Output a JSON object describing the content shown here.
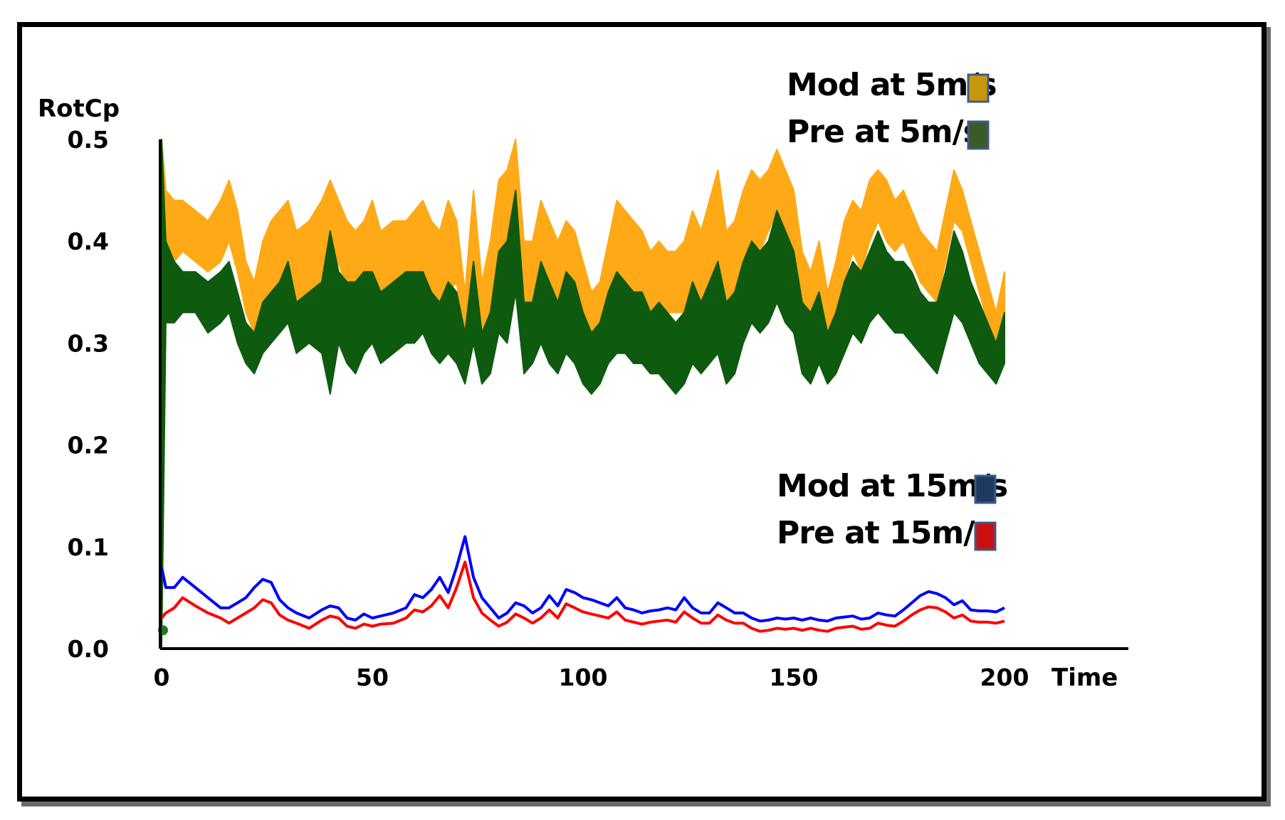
{
  "chart_data": {
    "type": "line",
    "title": "",
    "xlabel": "Time",
    "ylabel": "RotCp",
    "xlim": [
      0,
      200
    ],
    "ylim": [
      0,
      0.5
    ],
    "x_ticks": [
      "0",
      "50",
      "100",
      "150",
      "200"
    ],
    "y_ticks": [
      "0.0",
      "0.1",
      "0.2",
      "0.3",
      "0.4",
      "0.5"
    ],
    "legend_position": "top-right",
    "x": [
      0,
      1,
      3,
      5,
      8,
      11,
      14,
      16,
      18,
      20,
      22,
      24,
      26,
      28,
      30,
      32,
      35,
      38,
      40,
      42,
      44,
      46,
      48,
      50,
      52,
      55,
      58,
      60,
      62,
      64,
      66,
      68,
      70,
      72,
      74,
      76,
      78,
      80,
      82,
      84,
      86,
      88,
      90,
      92,
      94,
      96,
      98,
      100,
      102,
      104,
      106,
      108,
      110,
      112,
      114,
      116,
      118,
      120,
      122,
      124,
      126,
      128,
      130,
      132,
      134,
      136,
      138,
      140,
      142,
      144,
      146,
      148,
      150,
      152,
      154,
      156,
      158,
      160,
      162,
      164,
      166,
      168,
      170,
      172,
      174,
      176,
      178,
      180,
      182,
      184,
      186,
      188,
      190,
      192,
      194,
      196,
      198,
      200
    ],
    "series": [
      {
        "name": "Mod at 5m/s",
        "color": "#FFA916",
        "band_low": [
          0.34,
          0.37,
          0.38,
          0.39,
          0.38,
          0.37,
          0.38,
          0.4,
          0.37,
          0.33,
          0.31,
          0.34,
          0.35,
          0.36,
          0.37,
          0.34,
          0.35,
          0.36,
          0.34,
          0.38,
          0.35,
          0.34,
          0.35,
          0.37,
          0.34,
          0.35,
          0.36,
          0.36,
          0.37,
          0.35,
          0.34,
          0.35,
          0.36,
          0.3,
          0.38,
          0.3,
          0.33,
          0.39,
          0.38,
          0.43,
          0.33,
          0.34,
          0.37,
          0.35,
          0.33,
          0.36,
          0.35,
          0.32,
          0.3,
          0.3,
          0.33,
          0.35,
          0.36,
          0.35,
          0.34,
          0.33,
          0.34,
          0.33,
          0.33,
          0.33,
          0.35,
          0.34,
          0.35,
          0.37,
          0.34,
          0.35,
          0.38,
          0.4,
          0.39,
          0.41,
          0.43,
          0.41,
          0.39,
          0.34,
          0.32,
          0.35,
          0.3,
          0.33,
          0.36,
          0.39,
          0.37,
          0.4,
          0.42,
          0.4,
          0.39,
          0.4,
          0.38,
          0.36,
          0.35,
          0.34,
          0.38,
          0.42,
          0.41,
          0.38,
          0.35,
          0.32,
          0.29,
          0.33
        ],
        "band_high": [
          0.5,
          0.45,
          0.44,
          0.44,
          0.43,
          0.42,
          0.44,
          0.46,
          0.43,
          0.38,
          0.36,
          0.4,
          0.42,
          0.43,
          0.44,
          0.41,
          0.42,
          0.44,
          0.46,
          0.44,
          0.42,
          0.41,
          0.42,
          0.44,
          0.41,
          0.42,
          0.42,
          0.43,
          0.44,
          0.42,
          0.41,
          0.44,
          0.42,
          0.35,
          0.45,
          0.36,
          0.4,
          0.46,
          0.47,
          0.5,
          0.4,
          0.4,
          0.44,
          0.42,
          0.4,
          0.42,
          0.41,
          0.38,
          0.35,
          0.36,
          0.4,
          0.44,
          0.43,
          0.42,
          0.41,
          0.39,
          0.4,
          0.39,
          0.39,
          0.4,
          0.43,
          0.41,
          0.44,
          0.47,
          0.41,
          0.42,
          0.45,
          0.47,
          0.46,
          0.47,
          0.49,
          0.47,
          0.45,
          0.39,
          0.37,
          0.4,
          0.35,
          0.38,
          0.42,
          0.44,
          0.43,
          0.46,
          0.47,
          0.46,
          0.44,
          0.45,
          0.43,
          0.41,
          0.4,
          0.39,
          0.43,
          0.47,
          0.45,
          0.42,
          0.39,
          0.36,
          0.33,
          0.37
        ]
      },
      {
        "name": "Pre at 5m/s",
        "color": "#0E5A0E",
        "band_low": [
          0.0,
          0.32,
          0.32,
          0.33,
          0.33,
          0.31,
          0.32,
          0.33,
          0.3,
          0.28,
          0.27,
          0.29,
          0.3,
          0.31,
          0.32,
          0.29,
          0.3,
          0.29,
          0.25,
          0.3,
          0.28,
          0.27,
          0.29,
          0.3,
          0.28,
          0.29,
          0.3,
          0.3,
          0.31,
          0.29,
          0.28,
          0.29,
          0.28,
          0.26,
          0.3,
          0.26,
          0.27,
          0.31,
          0.3,
          0.35,
          0.27,
          0.28,
          0.3,
          0.28,
          0.27,
          0.29,
          0.28,
          0.26,
          0.25,
          0.26,
          0.28,
          0.29,
          0.29,
          0.28,
          0.28,
          0.27,
          0.27,
          0.26,
          0.25,
          0.26,
          0.28,
          0.27,
          0.28,
          0.29,
          0.26,
          0.27,
          0.3,
          0.32,
          0.31,
          0.32,
          0.34,
          0.32,
          0.31,
          0.27,
          0.26,
          0.28,
          0.26,
          0.27,
          0.29,
          0.31,
          0.3,
          0.32,
          0.33,
          0.32,
          0.31,
          0.31,
          0.3,
          0.29,
          0.28,
          0.27,
          0.3,
          0.33,
          0.32,
          0.3,
          0.28,
          0.27,
          0.26,
          0.28
        ],
        "band_high": [
          0.5,
          0.4,
          0.38,
          0.37,
          0.37,
          0.36,
          0.37,
          0.38,
          0.35,
          0.32,
          0.31,
          0.34,
          0.35,
          0.36,
          0.38,
          0.34,
          0.35,
          0.36,
          0.41,
          0.37,
          0.36,
          0.36,
          0.37,
          0.37,
          0.35,
          0.36,
          0.37,
          0.37,
          0.37,
          0.35,
          0.34,
          0.36,
          0.35,
          0.31,
          0.38,
          0.31,
          0.33,
          0.39,
          0.4,
          0.45,
          0.34,
          0.34,
          0.38,
          0.36,
          0.34,
          0.37,
          0.36,
          0.33,
          0.31,
          0.32,
          0.35,
          0.37,
          0.36,
          0.35,
          0.35,
          0.33,
          0.34,
          0.33,
          0.32,
          0.33,
          0.36,
          0.34,
          0.36,
          0.38,
          0.34,
          0.35,
          0.38,
          0.4,
          0.39,
          0.4,
          0.43,
          0.41,
          0.39,
          0.34,
          0.33,
          0.35,
          0.31,
          0.33,
          0.36,
          0.38,
          0.37,
          0.39,
          0.41,
          0.39,
          0.38,
          0.38,
          0.37,
          0.35,
          0.34,
          0.34,
          0.37,
          0.41,
          0.39,
          0.36,
          0.34,
          0.32,
          0.3,
          0.33
        ]
      },
      {
        "name": "Mod at 15m/s",
        "color": "#0000FF",
        "values": [
          0.08,
          0.06,
          0.06,
          0.07,
          0.06,
          0.05,
          0.04,
          0.04,
          0.045,
          0.05,
          0.06,
          0.068,
          0.065,
          0.048,
          0.04,
          0.035,
          0.03,
          0.038,
          0.042,
          0.04,
          0.03,
          0.028,
          0.034,
          0.03,
          0.032,
          0.035,
          0.04,
          0.053,
          0.05,
          0.058,
          0.07,
          0.055,
          0.08,
          0.11,
          0.07,
          0.05,
          0.04,
          0.03,
          0.035,
          0.045,
          0.042,
          0.035,
          0.04,
          0.052,
          0.042,
          0.058,
          0.055,
          0.05,
          0.048,
          0.045,
          0.042,
          0.05,
          0.04,
          0.038,
          0.035,
          0.037,
          0.038,
          0.04,
          0.038,
          0.05,
          0.04,
          0.035,
          0.035,
          0.045,
          0.04,
          0.035,
          0.035,
          0.03,
          0.027,
          0.028,
          0.03,
          0.029,
          0.03,
          0.028,
          0.03,
          0.028,
          0.027,
          0.03,
          0.031,
          0.032,
          0.029,
          0.03,
          0.035,
          0.033,
          0.032,
          0.038,
          0.045,
          0.052,
          0.056,
          0.054,
          0.05,
          0.043,
          0.047,
          0.038,
          0.037,
          0.037,
          0.036,
          0.04
        ]
      },
      {
        "name": "Pre at 15m/s",
        "color": "#FF0000",
        "values": [
          0.03,
          0.035,
          0.04,
          0.05,
          0.042,
          0.035,
          0.03,
          0.025,
          0.03,
          0.035,
          0.04,
          0.048,
          0.045,
          0.033,
          0.028,
          0.025,
          0.02,
          0.028,
          0.032,
          0.03,
          0.022,
          0.02,
          0.024,
          0.022,
          0.024,
          0.025,
          0.03,
          0.038,
          0.036,
          0.042,
          0.052,
          0.04,
          0.06,
          0.085,
          0.05,
          0.035,
          0.028,
          0.022,
          0.026,
          0.034,
          0.03,
          0.025,
          0.03,
          0.038,
          0.03,
          0.044,
          0.04,
          0.036,
          0.034,
          0.032,
          0.03,
          0.036,
          0.028,
          0.026,
          0.024,
          0.026,
          0.027,
          0.028,
          0.026,
          0.036,
          0.03,
          0.025,
          0.025,
          0.033,
          0.028,
          0.025,
          0.025,
          0.02,
          0.017,
          0.018,
          0.02,
          0.019,
          0.02,
          0.018,
          0.02,
          0.018,
          0.017,
          0.02,
          0.021,
          0.022,
          0.019,
          0.02,
          0.025,
          0.023,
          0.022,
          0.027,
          0.033,
          0.038,
          0.041,
          0.04,
          0.036,
          0.03,
          0.033,
          0.027,
          0.026,
          0.026,
          0.025,
          0.027
        ]
      }
    ],
    "legend": [
      {
        "label": "Mod at 5m/s",
        "color": "#C8960C"
      },
      {
        "label": "Pre at 5m/s",
        "color": "#3A5A2A"
      },
      {
        "label": "Mod at 15m/s",
        "color": "#1E3A5F"
      },
      {
        "label": "Pre at 15m/s",
        "color": "#CC1010"
      }
    ]
  }
}
